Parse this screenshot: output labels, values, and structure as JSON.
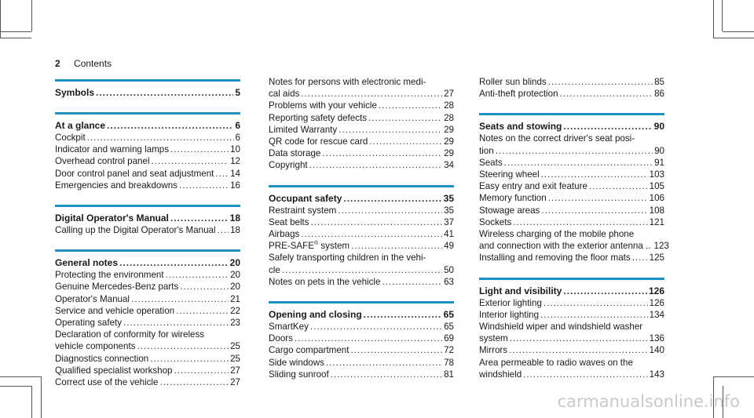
{
  "header": {
    "page_number": "2",
    "title": "Contents"
  },
  "columns": [
    [
      {
        "heading": {
          "title": "Symbols",
          "page": "5"
        },
        "entries": []
      },
      {
        "heading": {
          "title": "At a glance",
          "page": "6"
        },
        "entries": [
          {
            "title": "Cockpit",
            "page": "6"
          },
          {
            "title": "Indicator and warning lamps",
            "page": "10"
          },
          {
            "title": "Overhead control panel",
            "page": "12"
          },
          {
            "title": "Door control panel and seat adjustment",
            "page": "14"
          },
          {
            "title": "Emergencies and breakdowns",
            "page": "16"
          }
        ]
      },
      {
        "heading": {
          "title": "Digital Operator's Manual",
          "page": "18"
        },
        "entries": [
          {
            "title": "Calling up the Digital Operator's Manual",
            "page": "18"
          }
        ]
      },
      {
        "heading": {
          "title": "General notes",
          "page": "20"
        },
        "entries": [
          {
            "title": "Protecting the environment",
            "page": "20"
          },
          {
            "title": "Genuine Mercedes-Benz parts",
            "page": "20"
          },
          {
            "title": "Operator's Manual",
            "page": "21"
          },
          {
            "title": "Service and vehicle operation",
            "page": "22"
          },
          {
            "title": "Operating safety",
            "page": "23"
          },
          {
            "pre": "Declaration of conformity for wireless",
            "title": "vehicle components",
            "page": "25"
          },
          {
            "title": "Diagnostics connection",
            "page": "25"
          },
          {
            "title": "Qualified specialist workshop",
            "page": "27"
          },
          {
            "title": "Correct use of the vehicle",
            "page": "27"
          }
        ]
      }
    ],
    [
      {
        "continued": true,
        "entries": [
          {
            "pre": "Notes for persons with electronic medi-",
            "title": "cal aids",
            "page": "27"
          },
          {
            "title": "Problems with your vehicle",
            "page": "28"
          },
          {
            "title": "Reporting safety defects",
            "page": "28"
          },
          {
            "title": "Limited Warranty",
            "page": "29"
          },
          {
            "title": "QR code for rescue card",
            "page": "29"
          },
          {
            "title": "Data storage",
            "page": "29"
          },
          {
            "title": "Copyright",
            "page": "34"
          }
        ]
      },
      {
        "heading": {
          "title": "Occupant safety",
          "page": "35"
        },
        "entries": [
          {
            "title": "Restraint system",
            "page": "35"
          },
          {
            "title": "Seat belts",
            "page": "37"
          },
          {
            "title": "Airbags",
            "page": "41"
          },
          {
            "title": "PRE-SAFE",
            "sup": "®",
            "suffix": " system",
            "page": "49"
          },
          {
            "pre": "Safely transporting children in the vehi-",
            "title": "cle",
            "page": "50"
          },
          {
            "title": "Notes on pets in the vehicle",
            "page": "63"
          }
        ]
      },
      {
        "heading": {
          "title": "Opening and closing",
          "page": "65"
        },
        "entries": [
          {
            "title": "SmartKey",
            "page": "65"
          },
          {
            "title": "Doors",
            "page": "69"
          },
          {
            "title": "Cargo compartment",
            "page": "72"
          },
          {
            "title": "Side windows",
            "page": "78"
          },
          {
            "title": "Sliding sunroof",
            "page": "81"
          }
        ]
      }
    ],
    [
      {
        "continued": true,
        "entries": [
          {
            "title": "Roller sun blinds",
            "page": "85"
          },
          {
            "title": "Anti-theft protection",
            "page": "86"
          }
        ]
      },
      {
        "heading": {
          "title": "Seats and stowing",
          "page": "90"
        },
        "entries": [
          {
            "pre": "Notes on the correct driver's seat posi-",
            "title": "tion",
            "page": "90"
          },
          {
            "title": "Seats",
            "page": "91"
          },
          {
            "title": "Steering wheel",
            "page": "103"
          },
          {
            "title": "Easy entry and exit feature",
            "page": "105"
          },
          {
            "title": "Memory function",
            "page": "106"
          },
          {
            "title": "Stowage areas",
            "page": "108"
          },
          {
            "title": "Sockets",
            "page": "121"
          },
          {
            "pre": "Wireless charging of the mobile phone",
            "title": "and connection with the exterior antenna ..",
            "page": "123"
          },
          {
            "title": "Installing and removing the floor mats",
            "page": "125"
          }
        ]
      },
      {
        "heading": {
          "title": "Light and visibility",
          "page": "126"
        },
        "entries": [
          {
            "title": "Exterior lighting",
            "page": "126"
          },
          {
            "title": "Interior lighting",
            "page": "134"
          },
          {
            "pre": "Windshield wiper and windshield washer",
            "title": "system",
            "page": "136"
          },
          {
            "title": "Mirrors",
            "page": "140"
          },
          {
            "pre": "Area permeable to radio waves on the",
            "title": "windshield",
            "page": "143"
          }
        ]
      }
    ]
  ],
  "watermark": "carmanualsonline.info"
}
